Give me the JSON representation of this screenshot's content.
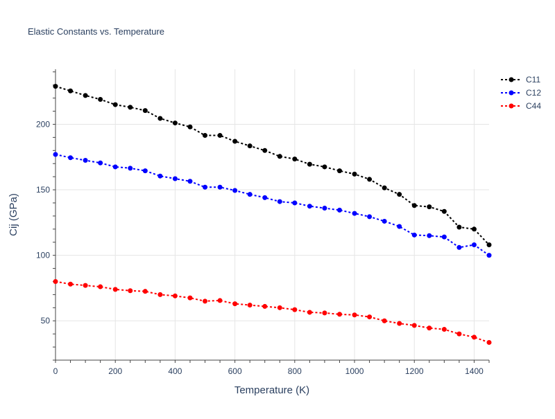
{
  "chart_data": {
    "type": "line",
    "title": "Elastic Constants vs. Temperature",
    "xlabel": "Temperature (K)",
    "ylabel": "Cij (GPa)",
    "xlim": [
      0,
      1450
    ],
    "ylim": [
      20,
      242
    ],
    "xticks": [
      0,
      200,
      400,
      600,
      800,
      1000,
      1200,
      1400
    ],
    "yticks": [
      50,
      100,
      150,
      200
    ],
    "grid": true,
    "legend_position": "top-right",
    "x": [
      0,
      50,
      100,
      150,
      200,
      250,
      300,
      350,
      400,
      450,
      500,
      550,
      600,
      650,
      700,
      750,
      800,
      850,
      900,
      950,
      1000,
      1050,
      1100,
      1150,
      1200,
      1250,
      1300,
      1350,
      1400,
      1450
    ],
    "series": [
      {
        "name": "C11",
        "color": "#000000",
        "values": [
          229,
          225.5,
          222,
          219,
          215,
          213,
          210.5,
          204.5,
          201,
          198,
          191.5,
          191.5,
          187,
          183.5,
          180,
          175.5,
          173.5,
          169.5,
          167.5,
          164.5,
          162,
          158,
          151.5,
          146.5,
          138,
          137,
          133.5,
          121.5,
          120,
          108
        ]
      },
      {
        "name": "C12",
        "color": "#0000ff",
        "values": [
          177,
          174.5,
          172.5,
          170.5,
          167.5,
          166.5,
          164.5,
          160.5,
          158.5,
          156.5,
          152,
          152,
          149.5,
          146.5,
          144,
          141,
          140,
          137.5,
          136,
          134.5,
          132,
          129.5,
          126,
          122,
          115.5,
          115,
          114,
          106,
          108,
          100
        ]
      },
      {
        "name": "C44",
        "color": "#ff0000",
        "values": [
          80,
          78,
          77,
          76,
          74,
          73,
          72.5,
          70,
          69,
          67.5,
          65,
          65.5,
          63,
          62,
          61,
          60,
          58.5,
          56.5,
          56,
          55,
          54.5,
          53,
          50,
          48,
          46.5,
          44.5,
          43.5,
          40,
          37.5,
          33.5
        ]
      }
    ]
  }
}
